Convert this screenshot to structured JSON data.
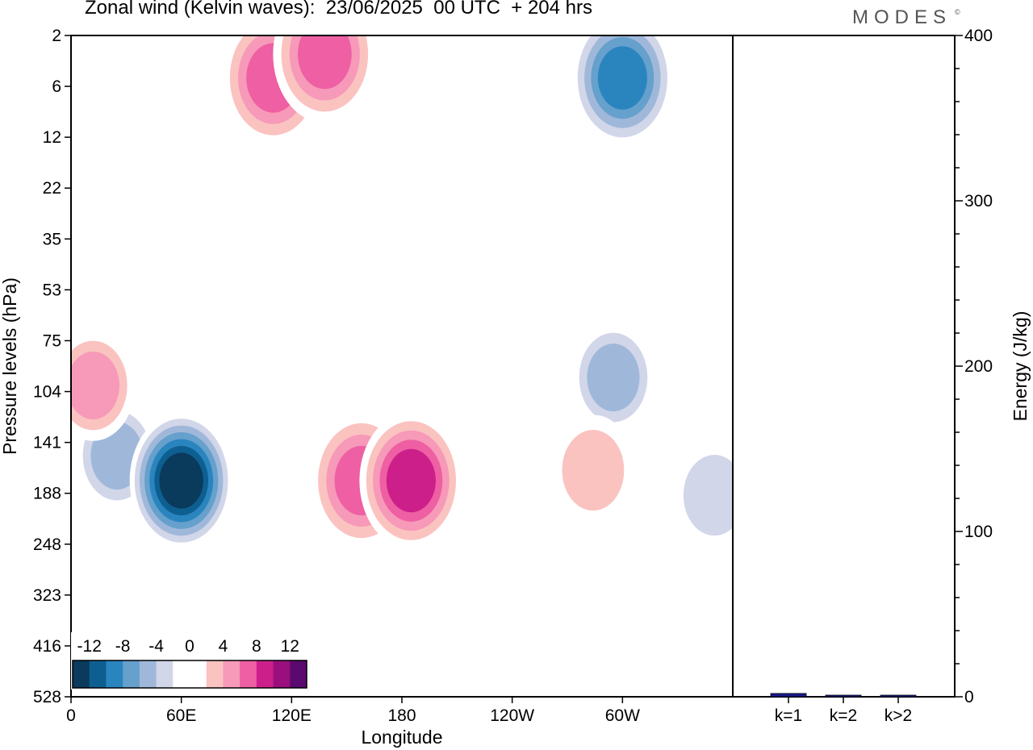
{
  "header": {
    "title": "Zonal wind (Kelvin waves):  23/06/2025  00 UTC  + 204 hrs",
    "logo": "MODES",
    "logo_mark": "©"
  },
  "chart_data": [
    {
      "type": "heatmap",
      "title": "Zonal wind (Kelvin waves):  23/06/2025  00 UTC  + 204 hrs",
      "xlabel": "Longitude",
      "ylabel": "Pressure levels (hPa)",
      "x_ticks": [
        "0",
        "60E",
        "120E",
        "180",
        "120W",
        "60W"
      ],
      "x_tick_lon": [
        0,
        60,
        120,
        180,
        240,
        300
      ],
      "xlim": [
        0,
        360
      ],
      "y_ticks": [
        "2",
        "6",
        "12",
        "22",
        "35",
        "53",
        "75",
        "104",
        "141",
        "188",
        "248",
        "323",
        "416",
        "528"
      ],
      "y_scale": "log-pressure",
      "colorbar": {
        "tick_labels": [
          "-12",
          "-8",
          "-4",
          "0",
          "4",
          "8",
          "12"
        ],
        "levels": [
          -14,
          -12,
          -10,
          -8,
          -6,
          -4,
          -2,
          0,
          2,
          4,
          6,
          8,
          10,
          12,
          14
        ],
        "colors": [
          "#0a3a5c",
          "#0e5f91",
          "#2a85bf",
          "#66a0cc",
          "#9fb8da",
          "#d2d6e9",
          "#ffffff",
          "#ffffff",
          "#fac3c0",
          "#f799b8",
          "#ee5fa3",
          "#cc1f8a",
          "#9a0f7d",
          "#5a0a6e"
        ]
      },
      "features": [
        {
          "sign": "negative",
          "lon": 25,
          "pressure": 152,
          "peak": -7
        },
        {
          "sign": "negative",
          "lon": 60,
          "pressure": 175,
          "peak": -14
        },
        {
          "sign": "negative",
          "lon": 295,
          "pressure": 95,
          "peak": -6
        },
        {
          "sign": "negative",
          "lon": 300,
          "pressure": 5,
          "peak": -10
        },
        {
          "sign": "negative",
          "lon": 350,
          "pressure": 190,
          "peak": -5
        },
        {
          "sign": "positive",
          "lon": 158,
          "pressure": 175,
          "peak": 8
        },
        {
          "sign": "positive",
          "lon": 185,
          "pressure": 175,
          "peak": 10
        },
        {
          "sign": "positive",
          "lon": 284,
          "pressure": 165,
          "peak": 5
        },
        {
          "sign": "positive",
          "lon": 12,
          "pressure": 100,
          "peak": 6
        },
        {
          "sign": "positive",
          "lon": 110,
          "pressure": 5,
          "peak": 8
        },
        {
          "sign": "positive",
          "lon": 138,
          "pressure": 3,
          "peak": 8
        }
      ]
    },
    {
      "type": "bar",
      "ylabel": "Energy (J/kg)",
      "ylim": [
        0,
        400
      ],
      "y_ticks": [
        "0",
        "100",
        "200",
        "300",
        "400"
      ],
      "categories": [
        "k=1",
        "k=2",
        "k>2"
      ],
      "values": [
        2,
        0.5,
        0.5
      ],
      "bar_color": "#1a1a8c"
    }
  ]
}
